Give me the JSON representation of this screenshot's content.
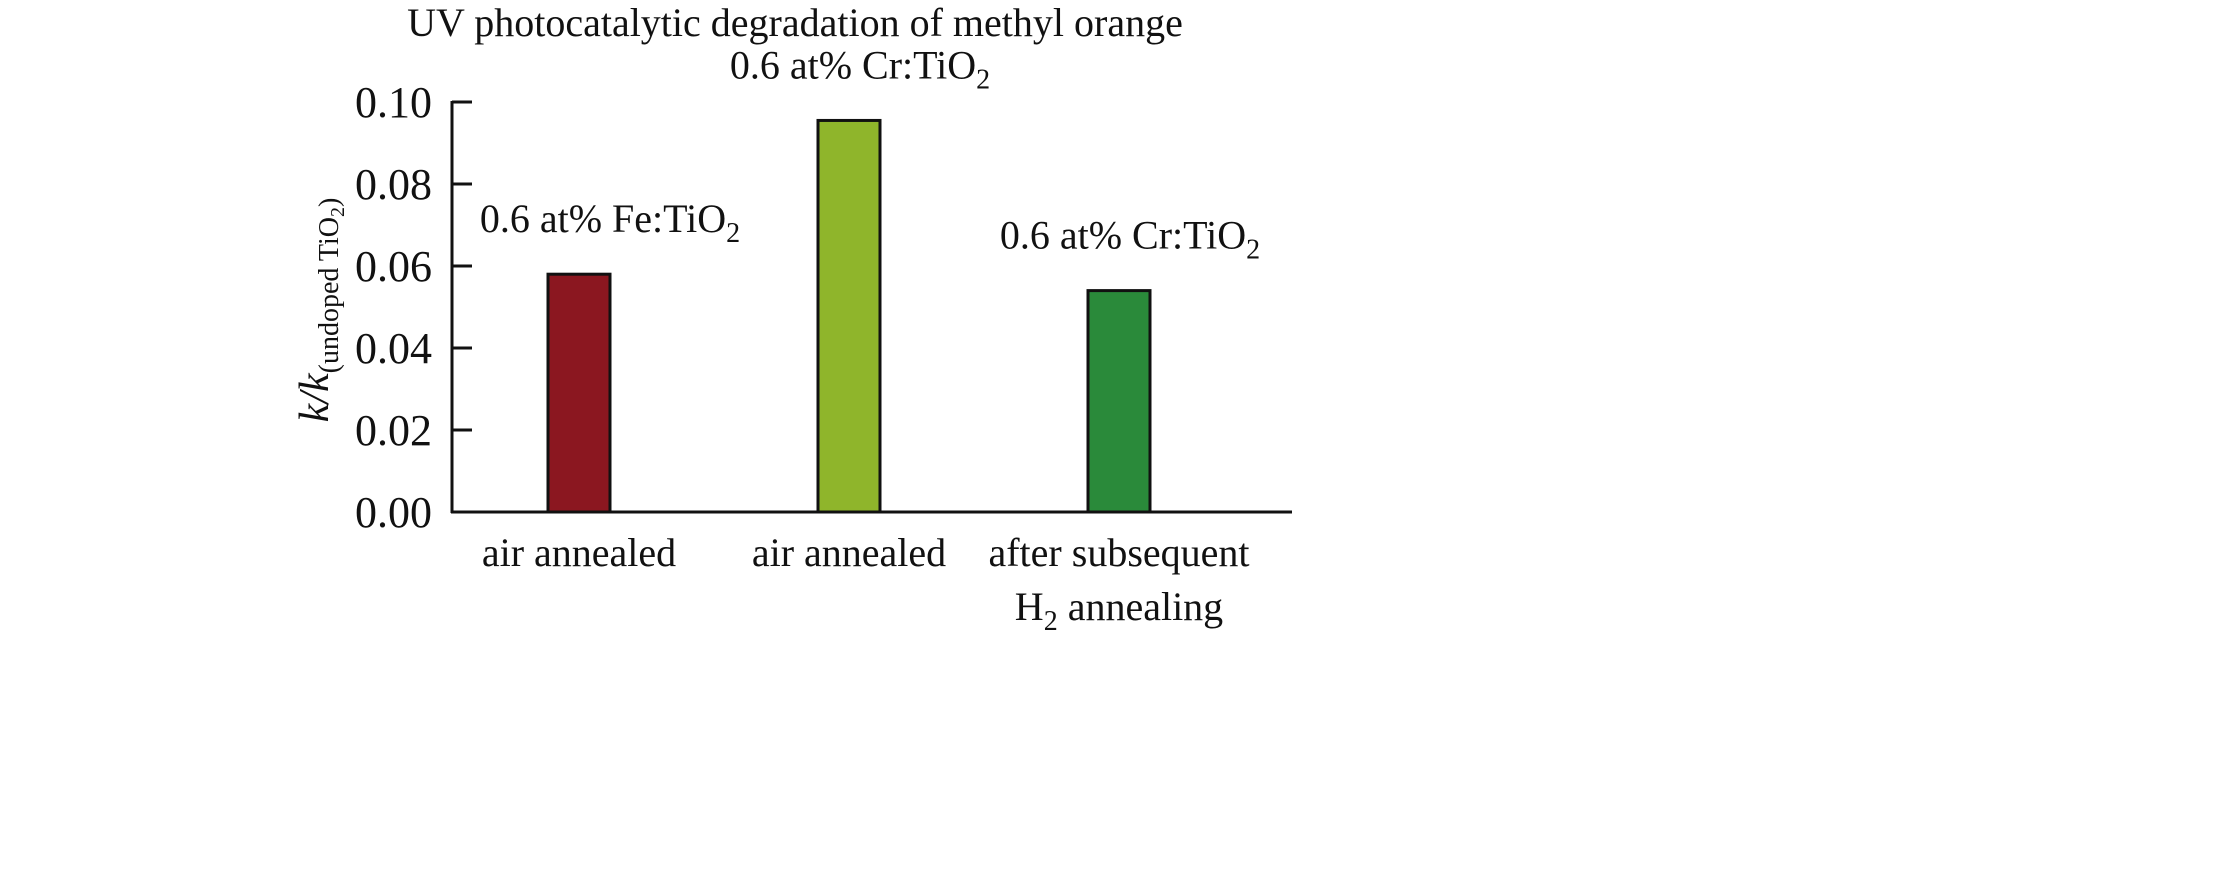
{
  "chart_data": {
    "type": "bar",
    "title": "UV photocatalytic degradation of methyl orange",
    "ylabel": {
      "main": "k/k",
      "sub": "(undoped TiO",
      "sub2": "2",
      "close": ")"
    },
    "xlabel": "",
    "ylim": [
      0,
      0.1
    ],
    "yticks": [
      "0.00",
      "0.02",
      "0.04",
      "0.06",
      "0.08",
      "0.10"
    ],
    "grid": false,
    "categories": [
      {
        "line1": "air annealed",
        "line2": ""
      },
      {
        "line1": "air annealed",
        "line2": ""
      },
      {
        "line1": "after subsequent",
        "line2_pre": "H",
        "line2_sub": "2",
        "line2_post": " annealing"
      }
    ],
    "bar_labels": [
      {
        "pre": "0.6 at% Fe:TiO",
        "sub": "2"
      },
      {
        "pre": "0.6 at% Cr:TiO",
        "sub": "2"
      },
      {
        "pre": "0.6 at% Cr:TiO",
        "sub": "2"
      }
    ],
    "values": [
      0.058,
      0.0955,
      0.054
    ],
    "colors": [
      "#8b1720",
      "#8fb52b",
      "#2a8a3a"
    ]
  }
}
